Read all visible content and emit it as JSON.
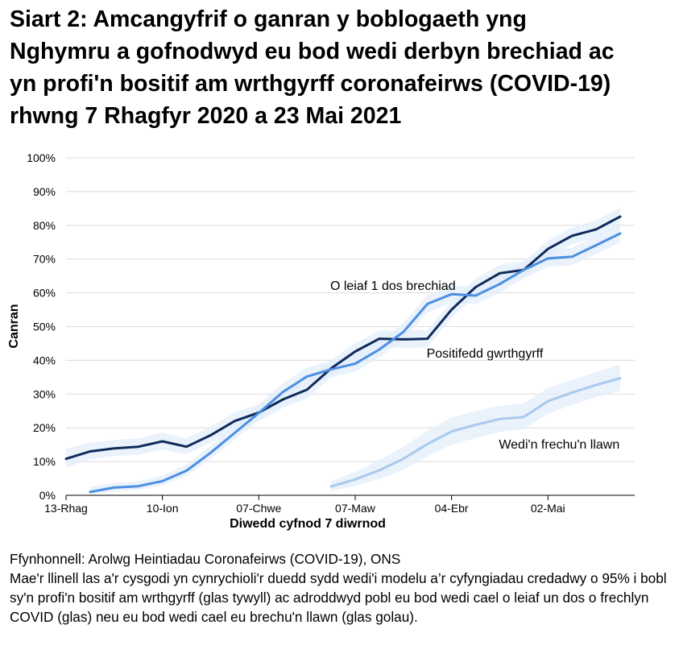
{
  "title": "Siart 2: Amcangyfrif o ganran y boblogaeth yng\nNghymru a gofnodwyd eu bod wedi derbyn brechiad ac\nyn profi'n bositif am wrthgyrff coronafeirws (COVID-19)\nrhwng 7 Rhagfyr 2020 a 23 Mai 2021",
  "source": "Ffynhonnell: Arolwg Heintiadau Coronafeirws (COVID-19), ONS",
  "note": "Mae'r llinell las a'r cysgodi yn cynrychioli'r duedd sydd wedi'i modelu a’r cyfyngiadau credadwy o 95% i bobl sy'n profi'n bositif am wrthgyrff (glas tywyll) ac adroddwyd pobl eu bod wedi cael o leiaf un dos o frechlyn COVID (glas) neu eu bod wedi cael eu brechu'n llawn (glas golau).",
  "colors": {
    "antibodies": "#0f2b5b",
    "at_least_one": "#4c8fe0",
    "fully": "#a9c9ef",
    "band": "#e3edfb",
    "grid": "#dcdcdc"
  },
  "chart_data": {
    "type": "line",
    "xlabel": "Diwedd cyfnod 7 diwrnod",
    "ylabel": "Canran",
    "ylim": [
      0,
      100
    ],
    "yticks": [
      "0%",
      "10%",
      "20%",
      "30%",
      "40%",
      "50%",
      "60%",
      "70%",
      "80%",
      "90%",
      "100%"
    ],
    "xticks": [
      "13-Rhag",
      "10-Ion",
      "07-Chwe",
      "07-Maw",
      "04-Ebr",
      "02-Mai"
    ],
    "grid": true,
    "series": [
      {
        "name": "Positifedd gwrthgyrff",
        "color_key": "antibodies",
        "x": [
          "13-Rhag",
          "20-Rhag",
          "27-Rhag",
          "03-Ion",
          "10-Ion",
          "17-Ion",
          "24-Ion",
          "31-Ion",
          "07-Chwe",
          "14-Chwe",
          "21-Chwe",
          "28-Chwe",
          "07-Maw",
          "14-Maw",
          "21-Maw",
          "28-Maw",
          "04-Ebr",
          "11-Ebr",
          "18-Ebr",
          "25-Ebr",
          "02-Mai",
          "09-Mai",
          "16-Mai",
          "23-Mai"
        ],
        "values": [
          10.8,
          13.0,
          13.9,
          14.4,
          16.0,
          14.4,
          17.8,
          22.0,
          24.5,
          28.4,
          31.3,
          37.6,
          42.6,
          46.4,
          46.2,
          46.4,
          55.0,
          61.7,
          65.8,
          66.8,
          73.0,
          76.9,
          78.8,
          82.6
        ],
        "lower": [
          8.2,
          10.7,
          11.6,
          12.0,
          13.5,
          12.2,
          15.5,
          19.6,
          22.0,
          25.9,
          28.7,
          35.0,
          40.0,
          44.0,
          43.7,
          43.9,
          52.5,
          59.2,
          63.3,
          64.3,
          70.6,
          74.4,
          76.3,
          79.8
        ],
        "upper": [
          13.8,
          15.6,
          16.4,
          16.9,
          18.6,
          16.9,
          20.3,
          24.5,
          27.1,
          31.0,
          33.9,
          40.1,
          45.1,
          48.9,
          48.7,
          49.0,
          57.5,
          64.2,
          68.3,
          69.3,
          75.5,
          79.4,
          81.4,
          85.2
        ],
        "label_x": "04-Ebr",
        "label_y": 42
      },
      {
        "name": "O leiaf 1 dos brechiad",
        "color_key": "at_least_one",
        "x": [
          "20-Rhag",
          "27-Rhag",
          "03-Ion",
          "10-Ion",
          "17-Ion",
          "24-Ion",
          "31-Ion",
          "07-Chwe",
          "14-Chwe",
          "21-Chwe",
          "28-Chwe",
          "07-Maw",
          "14-Maw",
          "21-Maw",
          "28-Maw",
          "04-Ebr",
          "11-Ebr",
          "18-Ebr",
          "25-Ebr",
          "02-Mai",
          "09-Mai",
          "16-Mai",
          "23-Mai"
        ],
        "values": [
          1.0,
          2.3,
          2.7,
          4.2,
          7.3,
          12.6,
          18.5,
          24.4,
          30.6,
          35.2,
          37.3,
          39.0,
          43.2,
          48.4,
          56.7,
          59.6,
          59.2,
          62.6,
          66.8,
          70.2,
          70.7,
          74.1,
          77.6
        ],
        "lower": [
          0.2,
          1.2,
          1.6,
          2.9,
          5.8,
          10.8,
          16.5,
          22.2,
          28.2,
          32.8,
          34.9,
          36.6,
          40.8,
          46.0,
          54.2,
          57.1,
          56.7,
          60.1,
          64.3,
          67.7,
          68.2,
          71.5,
          75.0
        ],
        "upper": [
          2.5,
          3.6,
          4.1,
          5.8,
          9.1,
          14.7,
          20.8,
          26.9,
          33.1,
          37.8,
          39.9,
          41.6,
          45.8,
          51.0,
          59.3,
          62.2,
          61.8,
          65.2,
          69.4,
          72.8,
          73.3,
          76.8,
          80.3
        ],
        "label_x": "07-Maw",
        "label_y": 62
      },
      {
        "name": "Wedi'n frechu'n llawn",
        "color_key": "fully",
        "x": [
          "28-Chwe",
          "07-Maw",
          "14-Maw",
          "21-Maw",
          "28-Maw",
          "04-Ebr",
          "11-Ebr",
          "18-Ebr",
          "25-Ebr",
          "02-Mai",
          "09-Mai",
          "16-Mai",
          "23-Mai"
        ],
        "values": [
          2.6,
          4.7,
          7.4,
          10.8,
          15.2,
          18.9,
          20.9,
          22.6,
          23.2,
          27.9,
          30.4,
          32.7,
          34.7
        ],
        "lower": [
          1.3,
          2.8,
          4.8,
          7.6,
          11.6,
          15.0,
          17.0,
          18.8,
          19.5,
          24.2,
          26.8,
          29.1,
          31.0
        ],
        "upper": [
          4.2,
          6.9,
          10.4,
          14.4,
          19.2,
          23.0,
          25.0,
          26.5,
          27.2,
          31.8,
          34.2,
          36.5,
          38.8
        ],
        "label_x": "25-Ebr",
        "label_y": 15
      }
    ]
  }
}
